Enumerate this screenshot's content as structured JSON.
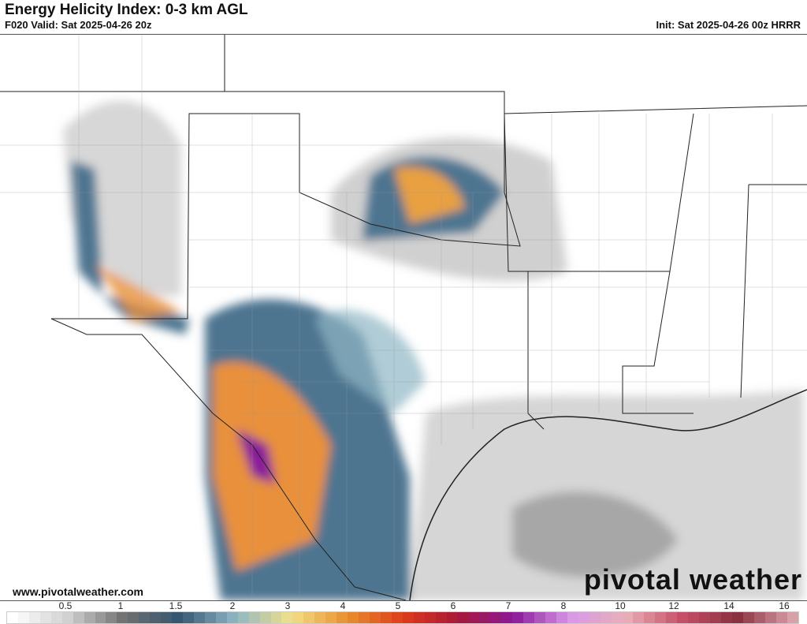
{
  "header": {
    "title": "Energy Helicity Index: 0-3 km AGL",
    "valid": "F020 Valid: Sat 2025-04-26 20z",
    "init": "Init: Sat 2025-04-26 00z HRRR"
  },
  "footer": {
    "url": "www.pivotalweather.com",
    "logo": "pivotal weather"
  },
  "colorbar": {
    "tick_labels": [
      "0.5",
      "1",
      "1.5",
      "2",
      "3",
      "4",
      "5",
      "6",
      "7",
      "8",
      "10",
      "12",
      "14",
      "16"
    ],
    "anchors": [
      "#ffffff",
      "#d0d0d0",
      "#707070",
      "#355670",
      "#8fb6c4",
      "#f2e08a",
      "#e8902e",
      "#de3c1a",
      "#a81838",
      "#8a1a9a",
      "#d898e8",
      "#e8b0b8",
      "#c85068",
      "#8a3040",
      "#d8a0a8"
    ]
  },
  "map": {
    "field_colors": {
      "low": "#c8c8c8",
      "mid": "#4e7590",
      "high": "#e8903a",
      "extreme": "#8a1a9a"
    }
  }
}
